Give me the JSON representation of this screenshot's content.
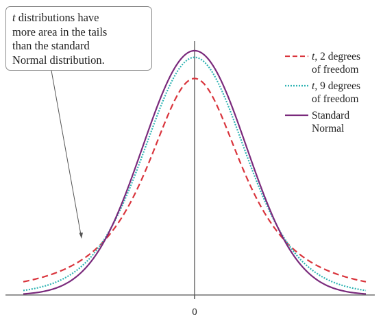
{
  "annotation": {
    "variable": "t",
    "line1_rest": " distributions have",
    "line2": "more area in the tails",
    "line3": "than the standard",
    "line4": "Normal distribution."
  },
  "legend": [
    {
      "var": "t",
      "line1_rest": ", 2 degrees",
      "line2": "of freedom",
      "color": "#d9343c",
      "style": "dashed"
    },
    {
      "var": "t",
      "line1_rest": ", 9 degrees",
      "line2": "of freedom",
      "color": "#2eb3b3",
      "style": "dotted"
    },
    {
      "var": "",
      "line1_rest": "Standard",
      "line2": "Normal",
      "color": "#7a2a7c",
      "style": "solid"
    }
  ],
  "chart_data": {
    "type": "line",
    "xlim": [
      -3.3,
      3.3
    ],
    "ylim": [
      0,
      0.41
    ],
    "x_ticks": [
      0
    ],
    "x_tick_labels": [
      "0"
    ],
    "series": [
      {
        "name": "t, 2 degrees of freedom",
        "distribution": "t",
        "df": 2,
        "color": "#d9343c",
        "style": "dashed"
      },
      {
        "name": "t, 9 degrees of freedom",
        "distribution": "t",
        "df": 9,
        "color": "#2eb3b3",
        "style": "dotted"
      },
      {
        "name": "Standard Normal",
        "distribution": "normal",
        "color": "#7a2a7c",
        "style": "solid"
      }
    ],
    "grid": false,
    "legend_position": "right"
  }
}
